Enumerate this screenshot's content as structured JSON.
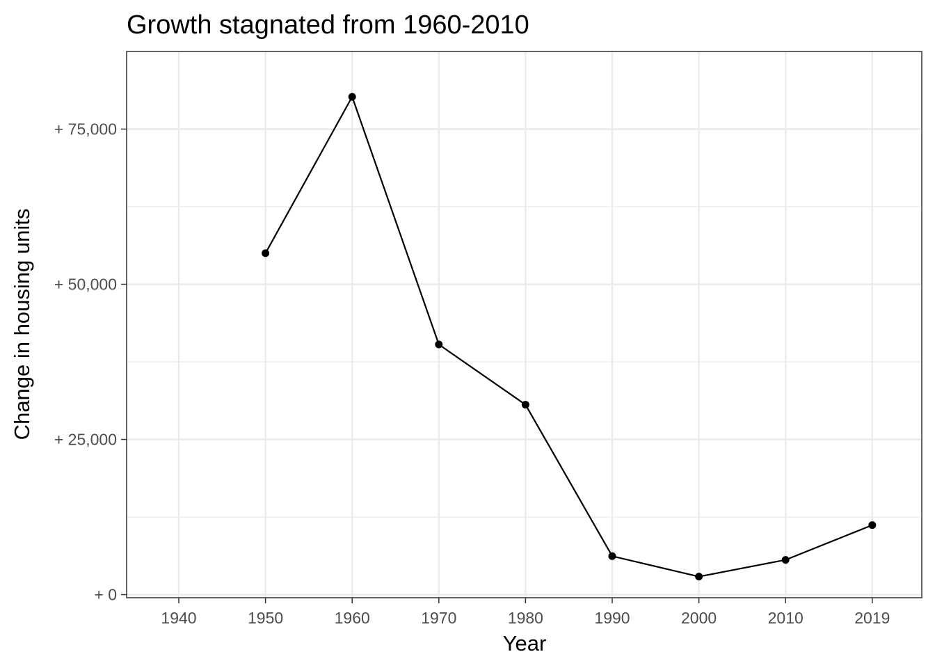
{
  "chart_data": {
    "type": "line",
    "title": "Growth stagnated from 1960-2010",
    "xlabel": "Year",
    "ylabel": "Change in housing units",
    "x_categories": [
      "1940",
      "1950",
      "1960",
      "1970",
      "1980",
      "1990",
      "2000",
      "2010",
      "2019"
    ],
    "y_ticks": [
      0,
      25000,
      50000,
      75000
    ],
    "y_tick_labels": [
      "+ 0",
      "+ 25,000",
      "+ 50,000",
      "+ 75,000"
    ],
    "ylim": [
      -500,
      87500
    ],
    "grid": true,
    "series": [
      {
        "points": [
          {
            "x": "1950",
            "y": 55000
          },
          {
            "x": "1960",
            "y": 80200
          },
          {
            "x": "1970",
            "y": 40300
          },
          {
            "x": "1980",
            "y": 30600
          },
          {
            "x": "1990",
            "y": 6200
          },
          {
            "x": "2000",
            "y": 2900
          },
          {
            "x": "2010",
            "y": 5600
          },
          {
            "x": "2019",
            "y": 11200
          }
        ],
        "color": "#000000"
      }
    ]
  }
}
